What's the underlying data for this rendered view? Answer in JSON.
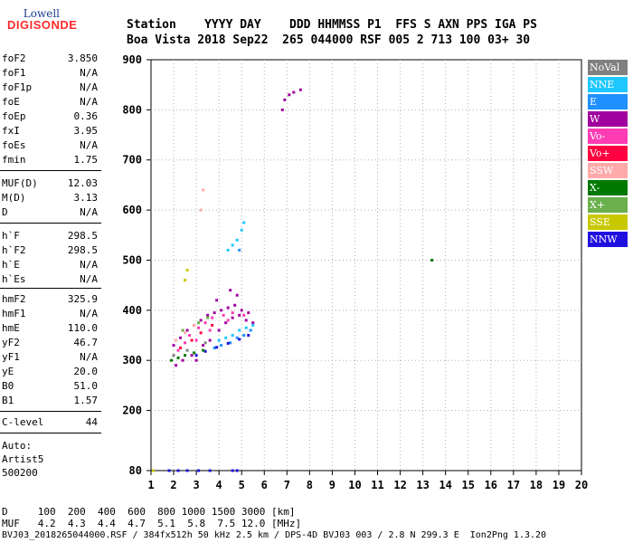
{
  "logo": {
    "line1": "Lowell",
    "line2": "DIGISONDE"
  },
  "header": {
    "row1": "Station    YYYY DAY    DDD HHMMSS P1  FFS S AXN PPS IGA PS",
    "row2": "Boa Vista 2018 Sep22  265 044000 RSF 005 2 713 100 03+ 30"
  },
  "params": [
    {
      "k": "foF2",
      "v": "3.850"
    },
    {
      "k": "foF1",
      "v": "N/A"
    },
    {
      "k": "foF1p",
      "v": "N/A"
    },
    {
      "k": "foE",
      "v": "N/A"
    },
    {
      "k": "foEp",
      "v": "0.36"
    },
    {
      "k": "fxI",
      "v": "3.95"
    },
    {
      "k": "foEs",
      "v": "N/A"
    },
    {
      "k": "fmin",
      "v": "1.75"
    },
    {
      "k": "MUF(D)",
      "v": "12.03"
    },
    {
      "k": "M(D)",
      "v": "3.13"
    },
    {
      "k": "D",
      "v": "N/A"
    },
    {
      "k": "h`F",
      "v": "298.5"
    },
    {
      "k": "h`F2",
      "v": "298.5"
    },
    {
      "k": "h`E",
      "v": "N/A"
    },
    {
      "k": "h`Es",
      "v": "N/A"
    },
    {
      "k": "hmF2",
      "v": "325.9"
    },
    {
      "k": "hmF1",
      "v": "N/A"
    },
    {
      "k": "hmE",
      "v": "110.0"
    },
    {
      "k": "yF2",
      "v": "46.7"
    },
    {
      "k": "yF1",
      "v": "N/A"
    },
    {
      "k": "yE",
      "v": "20.0"
    },
    {
      "k": "B0",
      "v": "51.0"
    },
    {
      "k": "B1",
      "v": "1.57"
    },
    {
      "k": "C-level",
      "v": "44"
    }
  ],
  "auto": {
    "l1": "Auto:",
    "l2": "Artist5",
    "l3": "500200"
  },
  "legend": [
    {
      "label": "NoVal",
      "color": "#808080"
    },
    {
      "label": "NNE",
      "color": "#1ec8ff"
    },
    {
      "label": "E",
      "color": "#1e90ff"
    },
    {
      "label": "W",
      "color": "#a0009e"
    },
    {
      "label": "Vo-",
      "color": "#ff3cb4"
    },
    {
      "label": "Vo+",
      "color": "#ff0040"
    },
    {
      "label": "SSW",
      "color": "#ffaaaa"
    },
    {
      "label": "X-",
      "color": "#007800"
    },
    {
      "label": "X+",
      "color": "#6ab04c"
    },
    {
      "label": "SSE",
      "color": "#c8c800"
    },
    {
      "label": "NNW",
      "color": "#2010e0"
    }
  ],
  "chart_data": {
    "type": "scatter",
    "xlim": [
      1,
      20
    ],
    "ylim": [
      80,
      900
    ],
    "x_ticks": [
      "1",
      "2",
      "3",
      "4",
      "5",
      "6",
      "7",
      "8",
      "9",
      "10",
      "11",
      "12",
      "13",
      "14",
      "15",
      "16",
      "17",
      "18",
      "19",
      "20"
    ],
    "y_ticks": [
      "80",
      "200",
      "300",
      "400",
      "500",
      "600",
      "700",
      "800",
      "900"
    ],
    "grid": true,
    "legend_position": "right",
    "series": [
      {
        "name": "W",
        "color": "#a0009e",
        "points": [
          [
            2.0,
            330
          ],
          [
            2.3,
            345
          ],
          [
            2.6,
            360
          ],
          [
            2.9,
            370
          ],
          [
            3.2,
            380
          ],
          [
            3.5,
            390
          ],
          [
            3.8,
            395
          ],
          [
            4.1,
            400
          ],
          [
            4.4,
            405
          ],
          [
            4.7,
            410
          ],
          [
            5.0,
            400
          ],
          [
            5.3,
            395
          ],
          [
            2.4,
            300
          ],
          [
            2.8,
            310
          ],
          [
            3.3,
            330
          ],
          [
            3.6,
            340
          ],
          [
            4.0,
            360
          ],
          [
            4.3,
            375
          ],
          [
            4.6,
            385
          ],
          [
            4.9,
            390
          ],
          [
            5.2,
            380
          ],
          [
            5.5,
            375
          ],
          [
            2.1,
            290
          ],
          [
            3.0,
            300
          ],
          [
            4.8,
            430
          ],
          [
            4.5,
            440
          ],
          [
            3.9,
            420
          ],
          [
            6.8,
            800
          ],
          [
            6.9,
            820
          ],
          [
            7.1,
            830
          ],
          [
            7.3,
            835
          ],
          [
            7.6,
            840
          ]
        ]
      },
      {
        "name": "Vo-",
        "color": "#ff3cb4",
        "points": [
          [
            2.2,
            320
          ],
          [
            2.5,
            335
          ],
          [
            2.7,
            350
          ],
          [
            3.1,
            365
          ],
          [
            3.4,
            375
          ],
          [
            3.7,
            385
          ],
          [
            4.2,
            390
          ],
          [
            4.6,
            395
          ],
          [
            5.1,
            390
          ],
          [
            3.0,
            340
          ],
          [
            3.6,
            360
          ],
          [
            4.4,
            380
          ]
        ]
      },
      {
        "name": "NNE",
        "color": "#1ec8ff",
        "points": [
          [
            4.0,
            340
          ],
          [
            4.3,
            345
          ],
          [
            4.6,
            350
          ],
          [
            4.9,
            360
          ],
          [
            5.2,
            365
          ],
          [
            5.5,
            370
          ],
          [
            4.4,
            520
          ],
          [
            4.6,
            530
          ],
          [
            4.8,
            540
          ],
          [
            5.0,
            560
          ],
          [
            5.1,
            575
          ]
        ]
      },
      {
        "name": "E",
        "color": "#1e90ff",
        "points": [
          [
            4.1,
            330
          ],
          [
            4.5,
            335
          ],
          [
            4.8,
            345
          ],
          [
            5.1,
            350
          ],
          [
            5.4,
            360
          ],
          [
            3.8,
            325
          ],
          [
            4.9,
            520
          ]
        ]
      },
      {
        "name": "NNW",
        "color": "#2010e0",
        "points": [
          [
            3.0,
            310
          ],
          [
            3.4,
            318
          ],
          [
            3.9,
            326
          ],
          [
            4.4,
            334
          ],
          [
            4.9,
            342
          ],
          [
            5.3,
            350
          ],
          [
            1.8,
            80
          ],
          [
            2.2,
            80
          ],
          [
            2.6,
            80
          ],
          [
            3.1,
            80
          ],
          [
            3.6,
            80
          ],
          [
            4.6,
            80
          ],
          [
            4.8,
            80
          ]
        ]
      },
      {
        "name": "X-",
        "color": "#007800",
        "points": [
          [
            1.9,
            300
          ],
          [
            2.2,
            305
          ],
          [
            2.5,
            310
          ],
          [
            2.9,
            315
          ],
          [
            3.3,
            320
          ],
          [
            13.4,
            500
          ]
        ]
      },
      {
        "name": "Vo+",
        "color": "#ff0040",
        "points": [
          [
            2.3,
            325
          ],
          [
            2.8,
            340
          ],
          [
            3.2,
            355
          ],
          [
            3.7,
            370
          ]
        ]
      },
      {
        "name": "SSW",
        "color": "#ffaaaa",
        "points": [
          [
            2.1,
            340
          ],
          [
            2.5,
            355
          ],
          [
            2.9,
            370
          ],
          [
            3.2,
            600
          ],
          [
            3.3,
            640
          ]
        ]
      },
      {
        "name": "X+",
        "color": "#6ab04c",
        "points": [
          [
            2.4,
            360
          ],
          [
            3.1,
            375
          ],
          [
            3.5,
            385
          ]
        ]
      },
      {
        "name": "SSE",
        "color": "#c8c800",
        "points": [
          [
            2.5,
            460
          ],
          [
            2.6,
            480
          ],
          [
            1.1,
            80
          ]
        ]
      },
      {
        "name": "NoVal",
        "color": "#808080",
        "points": [
          [
            2.0,
            310
          ],
          [
            2.6,
            320
          ],
          [
            3.4,
            335
          ]
        ]
      }
    ]
  },
  "footer": {
    "row1": "D     100  200  400  600  800 1000 1500 3000 [km]",
    "row2": "MUF   4.2  4.3  4.4  4.7  5.1  5.8  7.5 12.0 [MHz]",
    "row3": "BVJ03_2018265044000.RSF / 384fx512h 50 kHz 2.5 km / DPS-4D BVJ03 003 / 2.8 N 299.3 E  Ion2Png 1.3.20"
  }
}
